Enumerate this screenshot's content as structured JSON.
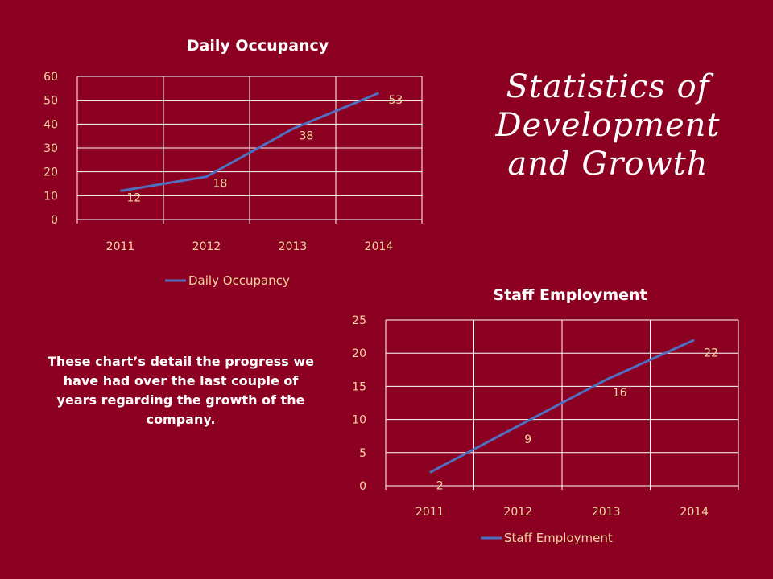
{
  "slide": {
    "title": "Statistics of Development and Growth",
    "body": "These chart’s detail the progress we have had over the last couple of years regarding the growth of the company."
  },
  "colors": {
    "background": "#8c0022",
    "line": "#4f6fc0",
    "label": "#f3d7a0",
    "title": "#ffffff"
  },
  "chart_data": [
    {
      "type": "line",
      "title": "Daily Occupancy",
      "categories": [
        "2011",
        "2012",
        "2013",
        "2014"
      ],
      "series": [
        {
          "name": "Daily Occupancy",
          "values": [
            12,
            18,
            38,
            53
          ]
        }
      ],
      "ylim": [
        0,
        60
      ],
      "yticks": [
        "0",
        "10",
        "20",
        "30",
        "40",
        "50",
        "60"
      ],
      "grid": true,
      "legend": "bottom"
    },
    {
      "type": "line",
      "title": "Staff Employment",
      "categories": [
        "2011",
        "2012",
        "2013",
        "2014"
      ],
      "series": [
        {
          "name": "Staff Employment",
          "values": [
            2,
            9,
            16,
            22
          ]
        }
      ],
      "ylim": [
        0,
        25
      ],
      "yticks": [
        "0",
        "5",
        "10",
        "15",
        "20",
        "25"
      ],
      "grid": true,
      "legend": "bottom"
    }
  ]
}
